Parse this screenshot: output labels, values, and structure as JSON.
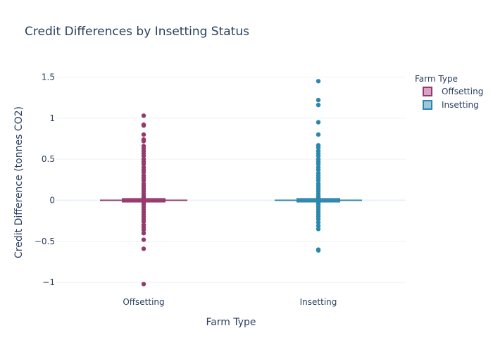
{
  "chart_data": {
    "type": "box",
    "title": "Credit Differences by Insetting Status",
    "xlabel": "Farm Type",
    "ylabel": "Credit Difference (tonnes CO2)",
    "categories": [
      "Offsetting",
      "Insetting"
    ],
    "ylim": [
      -1.1,
      1.6
    ],
    "yticks": [
      -1,
      -0.5,
      0,
      0.5,
      1,
      1.5
    ],
    "ytick_labels": [
      "−1",
      "−0.5",
      "0",
      "0.5",
      "1",
      "1.5"
    ],
    "grid": true,
    "legend": {
      "title": "Farm Type",
      "placement": "top-right",
      "entries": [
        "Offsetting",
        "Insetting"
      ]
    },
    "series": [
      {
        "name": "Offsetting",
        "color": "#963a6e",
        "fill": "#d9a1c4",
        "box": {
          "q1": -0.005,
          "median": 0.0,
          "q3": 0.005,
          "lower_whisker": -0.01,
          "upper_whisker": 0.01
        },
        "outliers": [
          1.03,
          0.92,
          0.91,
          0.8,
          0.74,
          0.72,
          0.66,
          0.63,
          0.6,
          0.57,
          0.54,
          0.5,
          0.47,
          0.44,
          0.4,
          0.37,
          0.34,
          0.3,
          0.27,
          0.24,
          0.2,
          0.17,
          0.14,
          0.11,
          0.08,
          0.05,
          0.03,
          -0.03,
          -0.05,
          -0.08,
          -0.11,
          -0.14,
          -0.17,
          -0.2,
          -0.23,
          -0.26,
          -0.3,
          -0.33,
          -0.36,
          -0.4,
          -0.48,
          -0.59,
          -1.02
        ]
      },
      {
        "name": "Insetting",
        "color": "#2d87ad",
        "fill": "#9ec8d9",
        "box": {
          "q1": -0.005,
          "median": 0.0,
          "q3": 0.005,
          "lower_whisker": -0.01,
          "upper_whisker": 0.01
        },
        "outliers": [
          1.45,
          1.22,
          1.16,
          0.95,
          0.8,
          0.67,
          0.64,
          0.6,
          0.57,
          0.54,
          0.5,
          0.47,
          0.44,
          0.4,
          0.37,
          0.33,
          0.3,
          0.27,
          0.24,
          0.2,
          0.17,
          0.14,
          0.11,
          0.08,
          0.05,
          0.03,
          -0.03,
          -0.05,
          -0.08,
          -0.11,
          -0.14,
          -0.17,
          -0.2,
          -0.23,
          -0.27,
          -0.31,
          -0.35,
          -0.6,
          -0.61
        ]
      }
    ]
  }
}
